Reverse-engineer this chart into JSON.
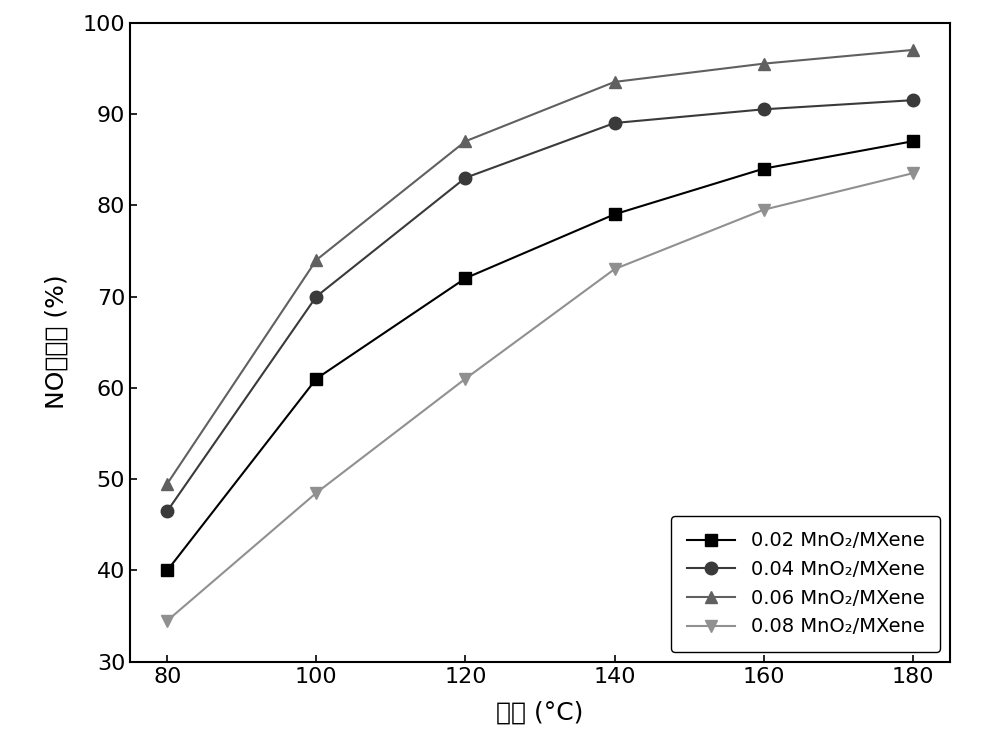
{
  "series": [
    {
      "label": "0.02 MnO₂/MXene",
      "x": [
        80,
        100,
        120,
        140,
        160,
        180
      ],
      "y": [
        40,
        61,
        72,
        79,
        84,
        87
      ],
      "marker": "s",
      "color": "#000000",
      "linestyle": "-"
    },
    {
      "label": "0.04 MnO₂/MXene",
      "x": [
        80,
        100,
        120,
        140,
        160,
        180
      ],
      "y": [
        46.5,
        70,
        83,
        89,
        90.5,
        91.5
      ],
      "marker": "o",
      "color": "#3a3a3a",
      "linestyle": "-"
    },
    {
      "label": "0.06 MnO₂/MXene",
      "x": [
        80,
        100,
        120,
        140,
        160,
        180
      ],
      "y": [
        49.5,
        74,
        87,
        93.5,
        95.5,
        97
      ],
      "marker": "^",
      "color": "#606060",
      "linestyle": "-"
    },
    {
      "label": "0.08 MnO₂/MXene",
      "x": [
        80,
        100,
        120,
        140,
        160,
        180
      ],
      "y": [
        34.5,
        48.5,
        61,
        73,
        79.5,
        83.5
      ],
      "marker": "v",
      "color": "#909090",
      "linestyle": "-"
    }
  ],
  "xlabel": "温度 (°C)",
  "ylabel": "NO转化率 (%)",
  "xlim": [
    75,
    185
  ],
  "ylim": [
    30,
    100
  ],
  "xticks": [
    80,
    100,
    120,
    140,
    160,
    180
  ],
  "yticks": [
    30,
    40,
    50,
    60,
    70,
    80,
    90,
    100
  ],
  "legend_loc": "lower right",
  "marker_size": 9,
  "linewidth": 1.5,
  "tick_fontsize": 16,
  "label_fontsize": 18,
  "legend_fontsize": 14,
  "background_color": "#ffffff"
}
